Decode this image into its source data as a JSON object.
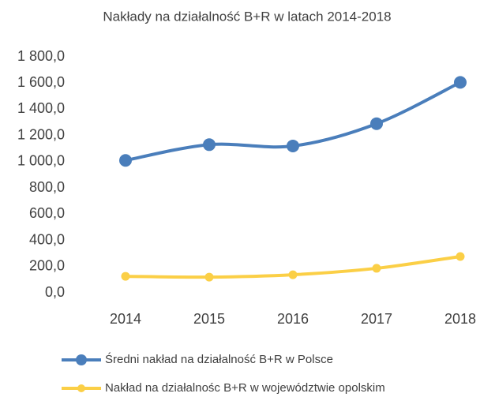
{
  "chart_data": {
    "type": "line",
    "title": "Nakłady na działalność B+R w latach 2014-2018",
    "categories": [
      "2014",
      "2015",
      "2016",
      "2017",
      "2018"
    ],
    "series": [
      {
        "name": "Średni nakład na działalność B+R w Polsce",
        "color": "#4a7ebb",
        "values": [
          1010,
          1130,
          1120,
          1290,
          1605
        ]
      },
      {
        "name": "Nakład na działalnośc B+R w województwie opolskim",
        "color": "#fbcf46",
        "values": [
          126,
          120,
          138,
          187,
          277
        ]
      }
    ],
    "ylim": [
      0,
      1800
    ],
    "yticks": [
      {
        "value": 0,
        "label": "0,0"
      },
      {
        "value": 200,
        "label": "200,0"
      },
      {
        "value": 400,
        "label": "400,0"
      },
      {
        "value": 600,
        "label": "600,0"
      },
      {
        "value": 800,
        "label": "800,0"
      },
      {
        "value": 1000,
        "label": "1 000,0"
      },
      {
        "value": 1200,
        "label": "1 200,0"
      },
      {
        "value": 1400,
        "label": "1 400,0"
      },
      {
        "value": 1600,
        "label": "1 600,0"
      },
      {
        "value": 1800,
        "label": "1 800,0"
      }
    ],
    "grid": false,
    "smooth": true,
    "legend": "bottom"
  }
}
